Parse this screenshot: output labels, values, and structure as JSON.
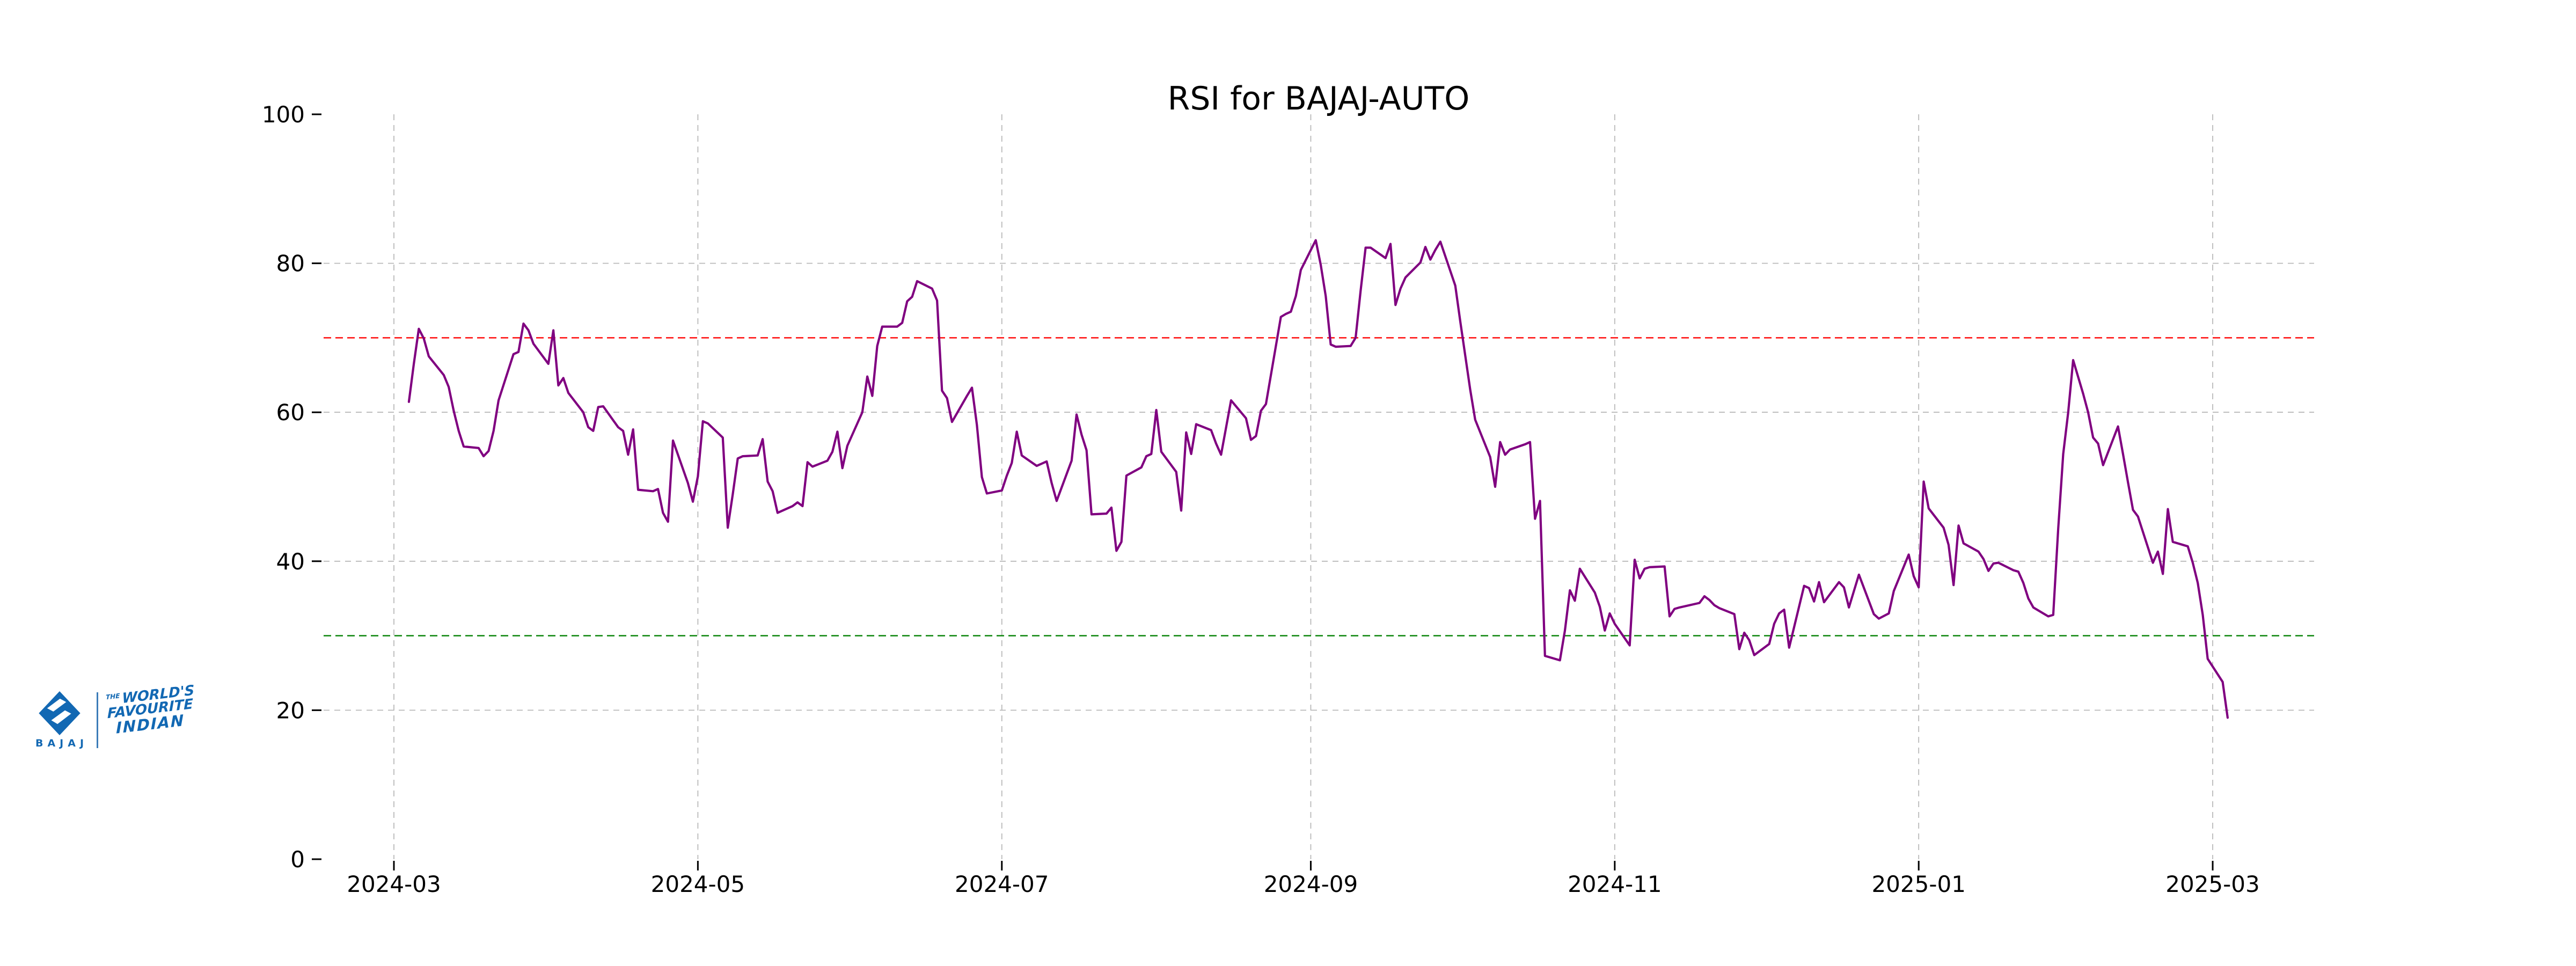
{
  "chart_data": {
    "type": "line",
    "title": "RSI for BAJAJ-AUTO",
    "xlabel": "",
    "ylabel": "",
    "ylim": [
      0,
      100
    ],
    "yticks": [
      0,
      20,
      40,
      60,
      80,
      100
    ],
    "grid_yvalues": [
      20,
      40,
      60,
      80
    ],
    "grid": true,
    "legend_position": "none",
    "xticks": [
      {
        "label": "2024-03",
        "date": "2024-03-01"
      },
      {
        "label": "2024-05",
        "date": "2024-05-01"
      },
      {
        "label": "2024-07",
        "date": "2024-07-01"
      },
      {
        "label": "2024-09",
        "date": "2024-09-01"
      },
      {
        "label": "2024-11",
        "date": "2024-11-01"
      },
      {
        "label": "2025-01",
        "date": "2025-01-01"
      },
      {
        "label": "2025-03",
        "date": "2025-03-01"
      }
    ],
    "hlines": [
      {
        "y": 70,
        "color": "#ff0000",
        "style": "dashed"
      },
      {
        "y": 30,
        "color": "#008000",
        "style": "dashed"
      }
    ],
    "series": [
      {
        "name": "RSI",
        "color": "#800080",
        "points": [
          [
            "2024-03-04",
            61.4
          ],
          [
            "2024-03-05",
            66.5
          ],
          [
            "2024-03-06",
            71.2
          ],
          [
            "2024-03-07",
            69.9
          ],
          [
            "2024-03-08",
            67.5
          ],
          [
            "2024-03-11",
            65.0
          ],
          [
            "2024-03-12",
            63.4
          ],
          [
            "2024-03-13",
            60.2
          ],
          [
            "2024-03-14",
            57.5
          ],
          [
            "2024-03-15",
            55.4
          ],
          [
            "2024-03-18",
            55.2
          ],
          [
            "2024-03-19",
            54.1
          ],
          [
            "2024-03-20",
            54.8
          ],
          [
            "2024-03-21",
            57.5
          ],
          [
            "2024-03-22",
            61.6
          ],
          [
            "2024-03-25",
            67.8
          ],
          [
            "2024-03-26",
            68.1
          ],
          [
            "2024-03-27",
            71.9
          ],
          [
            "2024-03-28",
            71.0
          ],
          [
            "2024-03-29",
            69.2
          ],
          [
            "2024-04-01",
            66.5
          ],
          [
            "2024-04-02",
            71.0
          ],
          [
            "2024-04-03",
            63.6
          ],
          [
            "2024-04-04",
            64.6
          ],
          [
            "2024-04-05",
            62.6
          ],
          [
            "2024-04-08",
            60.0
          ],
          [
            "2024-04-09",
            58.0
          ],
          [
            "2024-04-10",
            57.5
          ],
          [
            "2024-04-11",
            60.7
          ],
          [
            "2024-04-12",
            60.8
          ],
          [
            "2024-04-15",
            58.0
          ],
          [
            "2024-04-16",
            57.5
          ],
          [
            "2024-04-17",
            54.3
          ],
          [
            "2024-04-18",
            57.7
          ],
          [
            "2024-04-19",
            49.6
          ],
          [
            "2024-04-22",
            49.4
          ],
          [
            "2024-04-23",
            49.7
          ],
          [
            "2024-04-24",
            46.5
          ],
          [
            "2024-04-25",
            45.3
          ],
          [
            "2024-04-26",
            56.2
          ],
          [
            "2024-04-29",
            50.5
          ],
          [
            "2024-04-30",
            48.0
          ],
          [
            "2024-05-01",
            51.4
          ],
          [
            "2024-05-02",
            58.8
          ],
          [
            "2024-05-03",
            58.5
          ],
          [
            "2024-05-06",
            56.6
          ],
          [
            "2024-05-07",
            44.5
          ],
          [
            "2024-05-08",
            49.0
          ],
          [
            "2024-05-09",
            53.8
          ],
          [
            "2024-05-10",
            54.1
          ],
          [
            "2024-05-13",
            54.2
          ],
          [
            "2024-05-14",
            56.4
          ],
          [
            "2024-05-15",
            50.7
          ],
          [
            "2024-05-16",
            49.4
          ],
          [
            "2024-05-17",
            46.5
          ],
          [
            "2024-05-20",
            47.4
          ],
          [
            "2024-05-21",
            47.9
          ],
          [
            "2024-05-22",
            47.4
          ],
          [
            "2024-05-23",
            53.3
          ],
          [
            "2024-05-24",
            52.7
          ],
          [
            "2024-05-27",
            53.5
          ],
          [
            "2024-05-28",
            54.7
          ],
          [
            "2024-05-29",
            57.4
          ],
          [
            "2024-05-30",
            52.5
          ],
          [
            "2024-05-31",
            55.5
          ],
          [
            "2024-06-03",
            60.0
          ],
          [
            "2024-06-04",
            64.8
          ],
          [
            "2024-06-05",
            62.2
          ],
          [
            "2024-06-06",
            68.9
          ],
          [
            "2024-06-07",
            71.5
          ],
          [
            "2024-06-10",
            71.5
          ],
          [
            "2024-06-11",
            72.0
          ],
          [
            "2024-06-12",
            74.9
          ],
          [
            "2024-06-13",
            75.5
          ],
          [
            "2024-06-14",
            77.6
          ],
          [
            "2024-06-17",
            76.6
          ],
          [
            "2024-06-18",
            75.0
          ],
          [
            "2024-06-19",
            62.9
          ],
          [
            "2024-06-20",
            61.9
          ],
          [
            "2024-06-21",
            58.7
          ],
          [
            "2024-06-24",
            62.2
          ],
          [
            "2024-06-25",
            63.3
          ],
          [
            "2024-06-26",
            58.3
          ],
          [
            "2024-06-27",
            51.3
          ],
          [
            "2024-06-28",
            49.1
          ],
          [
            "2024-07-01",
            49.5
          ],
          [
            "2024-07-02",
            51.5
          ],
          [
            "2024-07-03",
            53.2
          ],
          [
            "2024-07-04",
            57.4
          ],
          [
            "2024-07-05",
            54.2
          ],
          [
            "2024-07-08",
            52.8
          ],
          [
            "2024-07-09",
            53.1
          ],
          [
            "2024-07-10",
            53.4
          ],
          [
            "2024-07-11",
            50.5
          ],
          [
            "2024-07-12",
            48.1
          ],
          [
            "2024-07-15",
            53.5
          ],
          [
            "2024-07-16",
            59.7
          ],
          [
            "2024-07-17",
            57.0
          ],
          [
            "2024-07-18",
            54.9
          ],
          [
            "2024-07-19",
            46.3
          ],
          [
            "2024-07-22",
            46.4
          ],
          [
            "2024-07-23",
            47.2
          ],
          [
            "2024-07-24",
            41.4
          ],
          [
            "2024-07-25",
            42.6
          ],
          [
            "2024-07-26",
            51.5
          ],
          [
            "2024-07-29",
            52.6
          ],
          [
            "2024-07-30",
            54.1
          ],
          [
            "2024-07-31",
            54.4
          ],
          [
            "2024-08-01",
            60.3
          ],
          [
            "2024-08-02",
            54.7
          ],
          [
            "2024-08-05",
            52.0
          ],
          [
            "2024-08-06",
            46.8
          ],
          [
            "2024-08-07",
            57.3
          ],
          [
            "2024-08-08",
            54.4
          ],
          [
            "2024-08-09",
            58.4
          ],
          [
            "2024-08-12",
            57.6
          ],
          [
            "2024-08-13",
            55.8
          ],
          [
            "2024-08-14",
            54.3
          ],
          [
            "2024-08-16",
            61.6
          ],
          [
            "2024-08-19",
            59.2
          ],
          [
            "2024-08-20",
            56.3
          ],
          [
            "2024-08-21",
            56.8
          ],
          [
            "2024-08-22",
            60.2
          ],
          [
            "2024-08-23",
            61.1
          ],
          [
            "2024-08-26",
            72.8
          ],
          [
            "2024-08-27",
            73.2
          ],
          [
            "2024-08-28",
            73.5
          ],
          [
            "2024-08-29",
            75.6
          ],
          [
            "2024-08-30",
            79.1
          ],
          [
            "2024-09-02",
            83.1
          ],
          [
            "2024-09-03",
            79.8
          ],
          [
            "2024-09-04",
            75.6
          ],
          [
            "2024-09-05",
            69.1
          ],
          [
            "2024-09-06",
            68.8
          ],
          [
            "2024-09-09",
            68.9
          ],
          [
            "2024-09-10",
            70.0
          ],
          [
            "2024-09-11",
            76.3
          ],
          [
            "2024-09-12",
            82.1
          ],
          [
            "2024-09-13",
            82.1
          ],
          [
            "2024-09-16",
            80.7
          ],
          [
            "2024-09-17",
            82.6
          ],
          [
            "2024-09-18",
            74.4
          ],
          [
            "2024-09-19",
            76.6
          ],
          [
            "2024-09-20",
            78.1
          ],
          [
            "2024-09-23",
            80.1
          ],
          [
            "2024-09-24",
            82.2
          ],
          [
            "2024-09-25",
            80.5
          ],
          [
            "2024-09-26",
            81.8
          ],
          [
            "2024-09-27",
            82.9
          ],
          [
            "2024-09-30",
            77.0
          ],
          [
            "2024-10-01",
            72.2
          ],
          [
            "2024-10-03",
            63.0
          ],
          [
            "2024-10-04",
            59.0
          ],
          [
            "2024-10-07",
            54.0
          ],
          [
            "2024-10-08",
            50.0
          ],
          [
            "2024-10-09",
            56.0
          ],
          [
            "2024-10-10",
            54.3
          ],
          [
            "2024-10-11",
            55.0
          ],
          [
            "2024-10-14",
            55.7
          ],
          [
            "2024-10-15",
            56.0
          ],
          [
            "2024-10-16",
            45.7
          ],
          [
            "2024-10-17",
            48.1
          ],
          [
            "2024-10-18",
            27.3
          ],
          [
            "2024-10-21",
            26.7
          ],
          [
            "2024-10-22",
            30.7
          ],
          [
            "2024-10-23",
            36.1
          ],
          [
            "2024-10-24",
            34.7
          ],
          [
            "2024-10-25",
            39.0
          ],
          [
            "2024-10-28",
            35.8
          ],
          [
            "2024-10-29",
            33.9
          ],
          [
            "2024-10-30",
            30.7
          ],
          [
            "2024-10-31",
            33.0
          ],
          [
            "2024-11-01",
            31.6
          ],
          [
            "2024-11-04",
            28.7
          ],
          [
            "2024-11-05",
            40.2
          ],
          [
            "2024-11-06",
            37.7
          ],
          [
            "2024-11-07",
            39.0
          ],
          [
            "2024-11-08",
            39.2
          ],
          [
            "2024-11-11",
            39.3
          ],
          [
            "2024-11-12",
            32.6
          ],
          [
            "2024-11-13",
            33.6
          ],
          [
            "2024-11-14",
            33.8
          ],
          [
            "2024-11-18",
            34.4
          ],
          [
            "2024-11-19",
            35.3
          ],
          [
            "2024-11-20",
            34.8
          ],
          [
            "2024-11-21",
            34.1
          ],
          [
            "2024-11-22",
            33.7
          ],
          [
            "2024-11-25",
            32.9
          ],
          [
            "2024-11-26",
            28.2
          ],
          [
            "2024-11-27",
            30.4
          ],
          [
            "2024-11-28",
            29.4
          ],
          [
            "2024-11-29",
            27.4
          ],
          [
            "2024-12-02",
            28.9
          ],
          [
            "2024-12-03",
            31.6
          ],
          [
            "2024-12-04",
            33.0
          ],
          [
            "2024-12-05",
            33.5
          ],
          [
            "2024-12-06",
            28.4
          ],
          [
            "2024-12-09",
            36.7
          ],
          [
            "2024-12-10",
            36.4
          ],
          [
            "2024-12-11",
            34.6
          ],
          [
            "2024-12-12",
            37.2
          ],
          [
            "2024-12-13",
            34.5
          ],
          [
            "2024-12-16",
            37.2
          ],
          [
            "2024-12-17",
            36.5
          ],
          [
            "2024-12-18",
            33.8
          ],
          [
            "2024-12-19",
            36.0
          ],
          [
            "2024-12-20",
            38.2
          ],
          [
            "2024-12-23",
            32.9
          ],
          [
            "2024-12-24",
            32.3
          ],
          [
            "2024-12-26",
            33.0
          ],
          [
            "2024-12-27",
            36.0
          ],
          [
            "2024-12-30",
            40.9
          ],
          [
            "2024-12-31",
            38.0
          ],
          [
            "2025-01-01",
            36.5
          ],
          [
            "2025-01-02",
            50.7
          ],
          [
            "2025-01-03",
            47.1
          ],
          [
            "2025-01-06",
            44.5
          ],
          [
            "2025-01-07",
            42.2
          ],
          [
            "2025-01-08",
            36.8
          ],
          [
            "2025-01-09",
            44.8
          ],
          [
            "2025-01-10",
            42.4
          ],
          [
            "2025-01-13",
            41.3
          ],
          [
            "2025-01-14",
            40.3
          ],
          [
            "2025-01-15",
            38.7
          ],
          [
            "2025-01-16",
            39.7
          ],
          [
            "2025-01-17",
            39.8
          ],
          [
            "2025-01-20",
            38.8
          ],
          [
            "2025-01-21",
            38.6
          ],
          [
            "2025-01-22",
            37.1
          ],
          [
            "2025-01-23",
            35.0
          ],
          [
            "2025-01-24",
            33.8
          ],
          [
            "2025-01-27",
            32.6
          ],
          [
            "2025-01-28",
            32.8
          ],
          [
            "2025-01-29",
            44.4
          ],
          [
            "2025-01-30",
            54.4
          ],
          [
            "2025-01-31",
            60.0
          ],
          [
            "2025-02-01",
            67.0
          ],
          [
            "2025-02-03",
            62.5
          ],
          [
            "2025-02-04",
            60.0
          ],
          [
            "2025-02-05",
            56.6
          ],
          [
            "2025-02-06",
            55.8
          ],
          [
            "2025-02-07",
            52.9
          ],
          [
            "2025-02-10",
            58.1
          ],
          [
            "2025-02-11",
            54.4
          ],
          [
            "2025-02-12",
            50.6
          ],
          [
            "2025-02-13",
            46.9
          ],
          [
            "2025-02-14",
            46.0
          ],
          [
            "2025-02-17",
            39.8
          ],
          [
            "2025-02-18",
            41.3
          ],
          [
            "2025-02-19",
            38.3
          ],
          [
            "2025-02-20",
            47.0
          ],
          [
            "2025-02-21",
            42.6
          ],
          [
            "2025-02-24",
            42.0
          ],
          [
            "2025-02-25",
            39.8
          ],
          [
            "2025-02-26",
            37.1
          ],
          [
            "2025-02-27",
            32.8
          ],
          [
            "2025-02-28",
            26.9
          ],
          [
            "2025-03-03",
            23.8
          ],
          [
            "2025-03-04",
            19.0
          ]
        ]
      }
    ]
  },
  "logo": {
    "brand": "BAJAJ",
    "tagline_the": "THE",
    "tagline_line1": "WORLD'S",
    "tagline_line2": "FAVOURITE",
    "tagline_line3": "INDIAN",
    "color": "#1268b3"
  }
}
